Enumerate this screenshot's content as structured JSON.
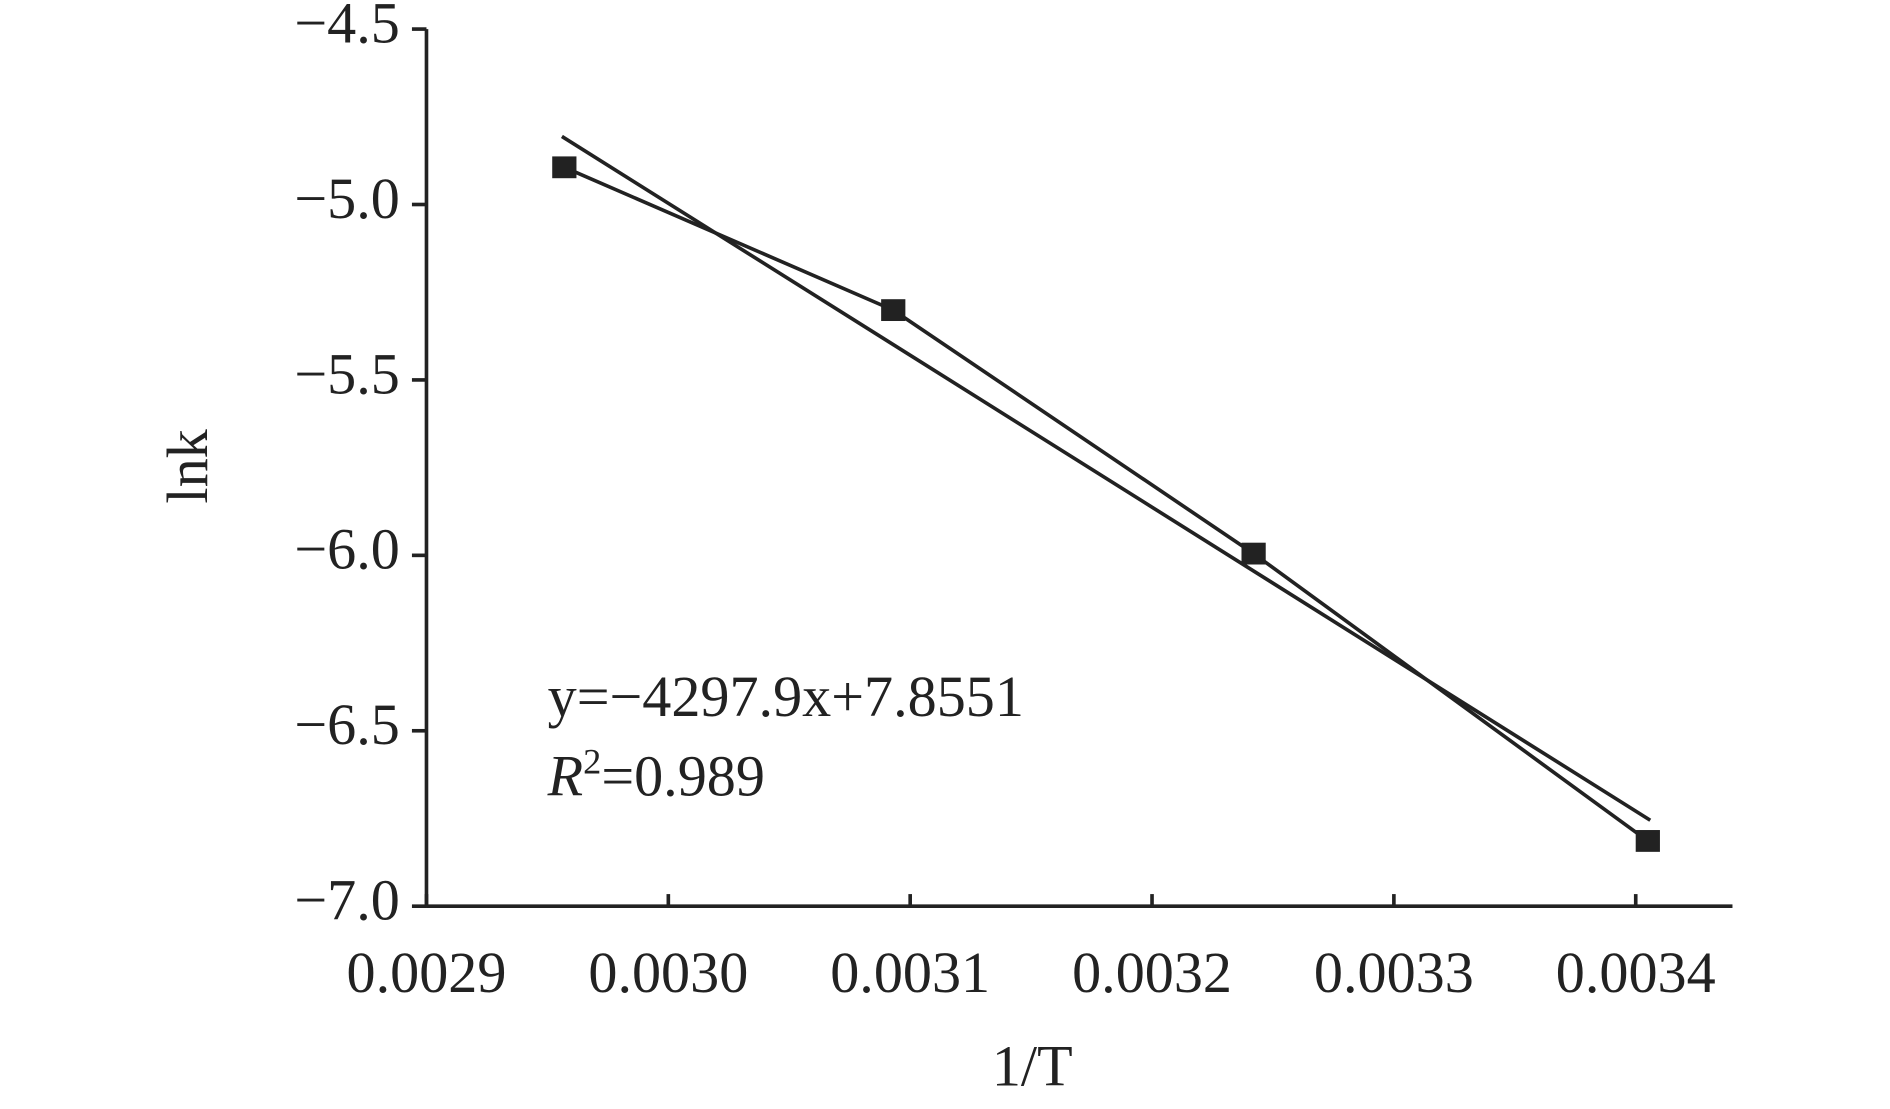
{
  "chart_data": {
    "type": "scatter",
    "x_label": "1/T",
    "y_label": "lnk",
    "series": [
      {
        "color": "#222222",
        "marker": "square",
        "line": true,
        "x": [
          0.002957,
          0.003093,
          0.003242,
          0.003405
        ],
        "values": [
          -4.894,
          -5.301,
          -5.995,
          -6.814
        ]
      },
      {
        "color": "#222222",
        "marker": "none",
        "line": true,
        "x": [
          0.002956,
          0.003406
        ],
        "values": [
          -4.806,
          -6.755
        ]
      }
    ],
    "annotation_equation": "y=−4297.9x+7.8551",
    "annotation_r2": {
      "symbol": "R",
      "exponent": "2",
      "rest": "=0.989"
    },
    "xlim": [
      0.0029,
      0.00344
    ],
    "ylim": [
      -7.0,
      -4.5
    ],
    "xticks": [
      0.0029,
      {
        "value": 0.003,
        "label": "0.0030"
      },
      0.0031,
      0.0032,
      0.0033,
      0.0034
    ],
    "yticks": [
      {
        "value": -4.5,
        "label": "−4.5"
      },
      {
        "value": -5.0,
        "label": "−5.0"
      },
      {
        "value": -5.5,
        "label": "−5.5"
      },
      {
        "value": -6.0,
        "label": "−6.0"
      },
      {
        "value": -6.5,
        "label": "−6.5"
      },
      {
        "value": -7.0,
        "label": "−7.0"
      }
    ],
    "grid": false
  }
}
